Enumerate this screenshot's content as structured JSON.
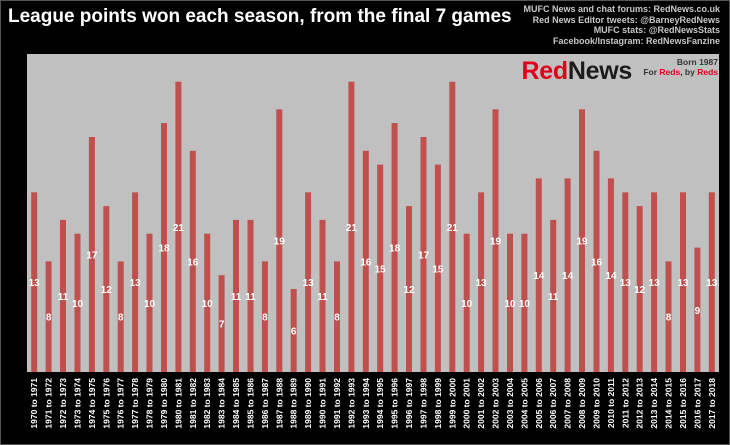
{
  "title": "League points won each season, from the final 7 games",
  "credits": [
    "MUFC News and chat forums: RedNews.co.uk",
    "Red News Editor tweets: @BarneyRedNews",
    "MUFC stats: @RedNewsStats",
    "Facebook/Instagram: RedNewsFanzine"
  ],
  "brand": {
    "part1": "Red",
    "part2": "News",
    "born": "Born 1987",
    "tag_prefix": "For ",
    "tag_reds1": "Reds",
    "tag_mid": ", by ",
    "tag_reds2": "Reds"
  },
  "colors": {
    "background": "#000000",
    "plot_area": "#c0c0c0",
    "bar": "#c0504d",
    "label": "#ffffff"
  },
  "chart_data": {
    "type": "bar",
    "title": "League points won each season, from the final 7 games",
    "categories": [
      "1970 to 1971",
      "1971 to 1972",
      "1972 to 1973",
      "1973 to 1974",
      "1974 to 1975",
      "1975 to 1976",
      "1976 to 1977",
      "1977 to 1978",
      "1978 to 1979",
      "1979 to 1980",
      "1980 to 1981",
      "1981 to 1982",
      "1982 to 1983",
      "1983 to 1984",
      "1984 to 1985",
      "1985 to 1986",
      "1986 to 1987",
      "1987 to 1988",
      "1988 to 1989",
      "1989 to 1990",
      "1990 to 1991",
      "1991 to 1992",
      "1992 to 1993",
      "1993 to 1994",
      "1994 to 1995",
      "1995 to 1996",
      "1996 to 1997",
      "1997 to 1998",
      "1998 to 1999",
      "1999 to 2000",
      "2000 to 2001",
      "2001 to 2002",
      "2002 to 2003",
      "2003 to 2004",
      "2004 to 2005",
      "2005 to 2006",
      "2006 to 2007",
      "2007 to 2008",
      "2008 to 2009",
      "2009 to 2010",
      "2010 to 2011",
      "2011 to 2012",
      "2012 to 2013",
      "2013 to 2014",
      "2014 to 2015",
      "2015 to 2016",
      "2016 to 2017",
      "2017 to 2018"
    ],
    "values": [
      13,
      8,
      11,
      10,
      17,
      12,
      8,
      13,
      10,
      18,
      21,
      16,
      10,
      7,
      11,
      11,
      8,
      19,
      6,
      13,
      11,
      8,
      21,
      16,
      15,
      18,
      12,
      17,
      15,
      21,
      10,
      13,
      19,
      10,
      10,
      14,
      11,
      14,
      19,
      16,
      14,
      13,
      12,
      13,
      8,
      13,
      9,
      13
    ],
    "xlabel": "",
    "ylabel": "",
    "ylim": [
      0,
      23
    ],
    "grid": false,
    "legend": "none"
  }
}
